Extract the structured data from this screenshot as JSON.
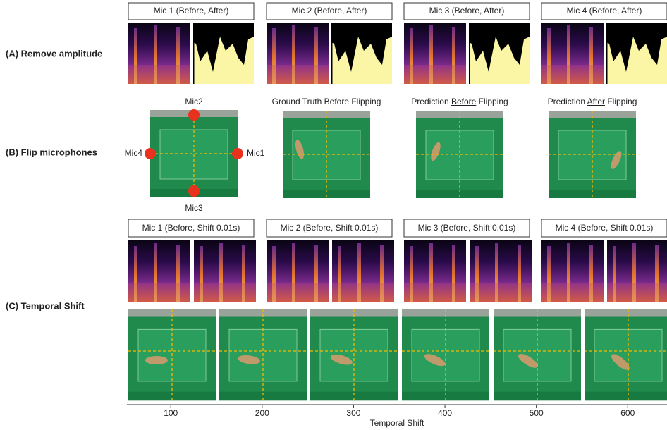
{
  "rows": [
    {
      "label": "(A) Remove amplitude",
      "panels": [
        "Mic 1 (Before, After)",
        "Mic 2 (Before, After)",
        "Mic 3 (Before, After)",
        "Mic 4 (Before, After)"
      ]
    },
    {
      "label": "(B) Flip microphones",
      "mics": {
        "top": "Mic2",
        "bottom": "Mic3",
        "left": "Mic4",
        "right": "Mic1"
      },
      "panels": [
        {
          "prefix": "Ground Truth Before Flipping"
        },
        {
          "prefix": "Prediction ",
          "emph": "Before",
          "suffix": " Flipping"
        },
        {
          "prefix": "Prediction ",
          "emph": "After",
          "suffix": " Flipping"
        }
      ]
    },
    {
      "label": "(C) Temporal Shift",
      "panels": [
        "Mic 1 (Before, Shift 0.01s)",
        "Mic 2 (Before, Shift 0.01s)",
        "Mic 3 (Before, Shift 0.01s)",
        "Mic 4 (Before, Shift 0.01s)"
      ]
    }
  ],
  "axis": {
    "label": "Temporal Shift",
    "xlim": [
      52,
      643
    ],
    "xticks": [
      100,
      200,
      300,
      400,
      500,
      600
    ]
  }
}
